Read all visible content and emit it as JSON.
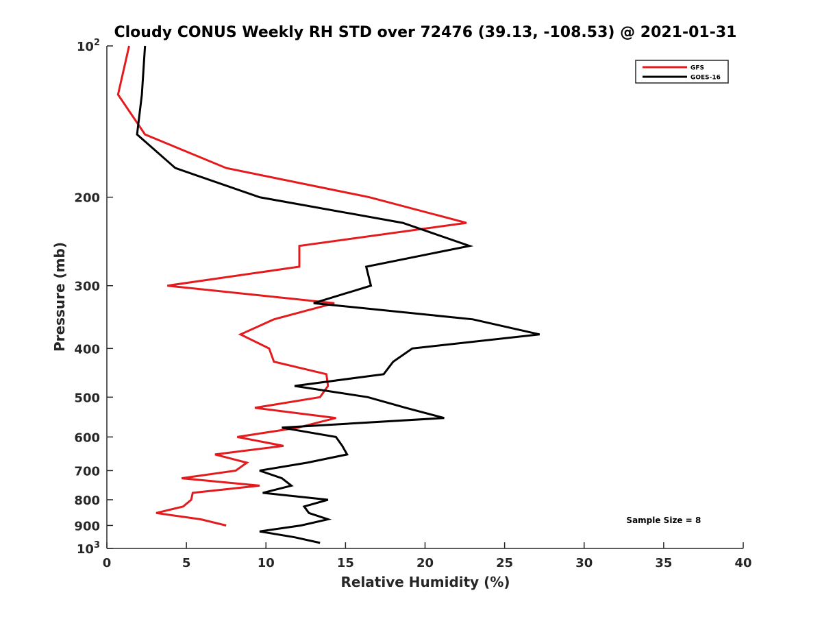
{
  "chart_data": {
    "type": "line",
    "title": "Cloudy CONUS Weekly RH STD over 72476 (39.13, -108.53) @ 2021-01-31",
    "xlabel": "Relative Humidity (%)",
    "ylabel": "Pressure (mb)",
    "xlim": [
      0,
      40
    ],
    "ylim": [
      1000,
      100
    ],
    "y_scale": "log",
    "y_reversed": true,
    "x_ticks": [
      0,
      5,
      10,
      15,
      20,
      25,
      30,
      35,
      40
    ],
    "x_tick_labels": [
      "0",
      "5",
      "10",
      "15",
      "20",
      "25",
      "30",
      "35",
      "40"
    ],
    "y_ticks": [
      100,
      200,
      300,
      400,
      500,
      600,
      700,
      800,
      900,
      1000
    ],
    "y_tick_labels": [
      {
        "base": "10",
        "exp": "2"
      },
      {
        "base": "200",
        "exp": ""
      },
      {
        "base": "300",
        "exp": ""
      },
      {
        "base": "400",
        "exp": ""
      },
      {
        "base": "500",
        "exp": ""
      },
      {
        "base": "600",
        "exp": ""
      },
      {
        "base": "700",
        "exp": ""
      },
      {
        "base": "800",
        "exp": ""
      },
      {
        "base": "900",
        "exp": ""
      },
      {
        "base": "10",
        "exp": "3"
      }
    ],
    "grid": false,
    "legend_position": "top-right",
    "series": [
      {
        "name": "GFS",
        "color": "#e41a1c",
        "points": [
          [
            1.4,
            100
          ],
          [
            0.7,
            125
          ],
          [
            2.4,
            150
          ],
          [
            7.5,
            175
          ],
          [
            16.5,
            200
          ],
          [
            22.6,
            225
          ],
          [
            12.1,
            250
          ],
          [
            12.1,
            275
          ],
          [
            3.8,
            300
          ],
          [
            14.3,
            325
          ],
          [
            10.5,
            350
          ],
          [
            8.4,
            375
          ],
          [
            10.2,
            400
          ],
          [
            10.5,
            425
          ],
          [
            13.8,
            450
          ],
          [
            13.9,
            475
          ],
          [
            13.4,
            500
          ],
          [
            9.3,
            525
          ],
          [
            14.4,
            550
          ],
          [
            12.0,
            575
          ],
          [
            8.2,
            600
          ],
          [
            11.1,
            625
          ],
          [
            6.8,
            650
          ],
          [
            8.8,
            675
          ],
          [
            8.1,
            700
          ],
          [
            4.7,
            725
          ],
          [
            9.6,
            750
          ],
          [
            5.4,
            775
          ],
          [
            5.3,
            800
          ],
          [
            4.8,
            825
          ],
          [
            3.1,
            850
          ],
          [
            5.9,
            875
          ],
          [
            7.5,
            900
          ]
        ]
      },
      {
        "name": "GOES-16",
        "color": "#000000",
        "points": [
          [
            2.4,
            100
          ],
          [
            2.2,
            125
          ],
          [
            1.9,
            150
          ],
          [
            4.3,
            175
          ],
          [
            9.6,
            200
          ],
          [
            18.6,
            225
          ],
          [
            22.8,
            250
          ],
          [
            16.3,
            275
          ],
          [
            16.6,
            300
          ],
          [
            13.0,
            325
          ],
          [
            23.0,
            350
          ],
          [
            27.2,
            375
          ],
          [
            19.2,
            400
          ],
          [
            18.0,
            425
          ],
          [
            17.4,
            450
          ],
          [
            11.8,
            475
          ],
          [
            16.4,
            500
          ],
          [
            18.8,
            525
          ],
          [
            21.2,
            550
          ],
          [
            11.0,
            575
          ],
          [
            14.4,
            600
          ],
          [
            14.8,
            625
          ],
          [
            15.1,
            650
          ],
          [
            12.6,
            675
          ],
          [
            9.6,
            700
          ],
          [
            11.0,
            725
          ],
          [
            11.6,
            750
          ],
          [
            9.8,
            775
          ],
          [
            13.9,
            800
          ],
          [
            12.4,
            825
          ],
          [
            12.7,
            850
          ],
          [
            13.9,
            875
          ],
          [
            12.2,
            900
          ],
          [
            9.6,
            925
          ],
          [
            11.8,
            950
          ],
          [
            13.4,
            975
          ]
        ]
      }
    ],
    "annotations": [
      {
        "text": "Sample Size = 8",
        "x": 35.0,
        "y": 890
      }
    ]
  }
}
